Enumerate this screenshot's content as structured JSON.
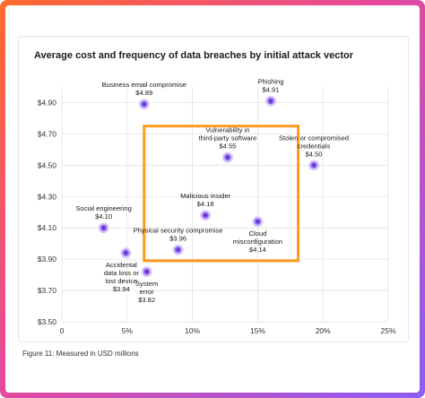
{
  "caption": "Figure 11: Measured in USD millions",
  "chart_data": {
    "type": "scatter",
    "title": "Average cost and frequency of data breaches by initial attack vector",
    "xlabel": "",
    "ylabel": "",
    "xlim": [
      0,
      25
    ],
    "ylim": [
      3.5,
      5.0
    ],
    "x_ticks": [
      "0",
      "5%",
      "10%",
      "15%",
      "20%",
      "25%"
    ],
    "y_ticks": [
      "$3.50",
      "$3.70",
      "$3.90",
      "$4.10",
      "$4.30",
      "$4.50",
      "$4.70",
      "$4.90"
    ],
    "grid": true,
    "highlight_box": {
      "x": [
        6.3,
        18.1
      ],
      "y": [
        3.89,
        4.75
      ],
      "color": "#ff9a1f"
    },
    "points": [
      {
        "name": "Business email compromise",
        "value_label": "$4.89",
        "x": 6.3,
        "y": 4.89
      },
      {
        "name": "Phishing",
        "value_label": "$4.91",
        "x": 16.0,
        "y": 4.91
      },
      {
        "name": "Vulnerability in third-party software",
        "value_label": "$4.55",
        "x": 12.7,
        "y": 4.55
      },
      {
        "name": "Stolen or compromised credentials",
        "value_label": "$4.50",
        "x": 19.3,
        "y": 4.5
      },
      {
        "name": "Malicious insider",
        "value_label": "$4.18",
        "x": 11.0,
        "y": 4.18
      },
      {
        "name": "Cloud misconfiguration",
        "value_label": "$4.14",
        "x": 15.0,
        "y": 4.14
      },
      {
        "name": "Social engineering",
        "value_label": "$4.10",
        "x": 3.2,
        "y": 4.1
      },
      {
        "name": "Physical security compromise",
        "value_label": "$3.96",
        "x": 8.9,
        "y": 3.96
      },
      {
        "name": "Accidental data loss or lost device",
        "value_label": "$3.94",
        "x": 4.9,
        "y": 3.94
      },
      {
        "name": "System error",
        "value_label": "$3.82",
        "x": 6.5,
        "y": 3.82
      }
    ],
    "point_color": "#8a5cf6",
    "point_halo_color": "#d9c8fb"
  }
}
